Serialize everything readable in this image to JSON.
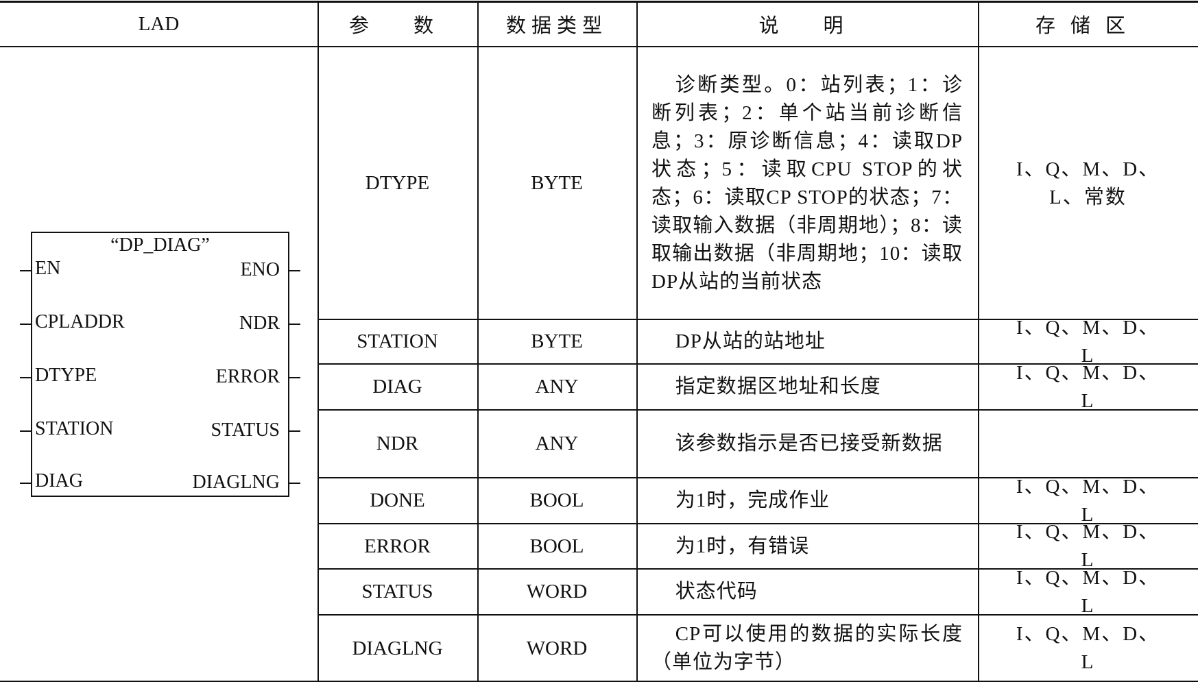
{
  "header": {
    "lad": "LAD",
    "param": "参　数",
    "type": "数据类型",
    "desc": "说　明",
    "area": "存储区"
  },
  "block": {
    "title": "“DP_DIAG”",
    "inputs": [
      "EN",
      "CPLADDR",
      "DTYPE",
      "STATION",
      "DIAG"
    ],
    "outputs": [
      "ENO",
      "NDR",
      "ERROR",
      "STATUS",
      "DIAGLNG"
    ]
  },
  "rows": [
    {
      "param": "DTYPE",
      "type": "BYTE",
      "desc": "诊断类型。0：站列表；1：诊断列表；2：单个站当前诊断信息；3：原诊断信息；4：读取DP状态；5：读取CPU STOP的状态；6：读取CP STOP的状态；7：读取输入数据（非周期地）；8：读取输出数据（非周期地；10：读取DP从站的当前状态",
      "area": "I、Q、M、D、L、常数"
    },
    {
      "param": "STATION",
      "type": "BYTE",
      "desc": "DP从站的站地址",
      "area": "I、Q、M、D、L"
    },
    {
      "param": "DIAG",
      "type": "ANY",
      "desc": "指定数据区地址和长度",
      "area": "I、Q、M、D、L"
    },
    {
      "param": "NDR",
      "type": "ANY",
      "desc": "该参数指示是否已接受新数据",
      "area": ""
    },
    {
      "param": "DONE",
      "type": "BOOL",
      "desc": "为1时，完成作业",
      "area": "I、Q、M、D、L"
    },
    {
      "param": "ERROR",
      "type": "BOOL",
      "desc": "为1时，有错误",
      "area": "I、Q、M、D、L"
    },
    {
      "param": "STATUS",
      "type": "WORD",
      "desc": "状态代码",
      "area": "I、Q、M、D、L"
    },
    {
      "param": "DIAGLNG",
      "type": "WORD",
      "desc": "CP可以使用的数据的实际长度（单位为字节）",
      "area": "I、Q、M、D、L"
    }
  ]
}
